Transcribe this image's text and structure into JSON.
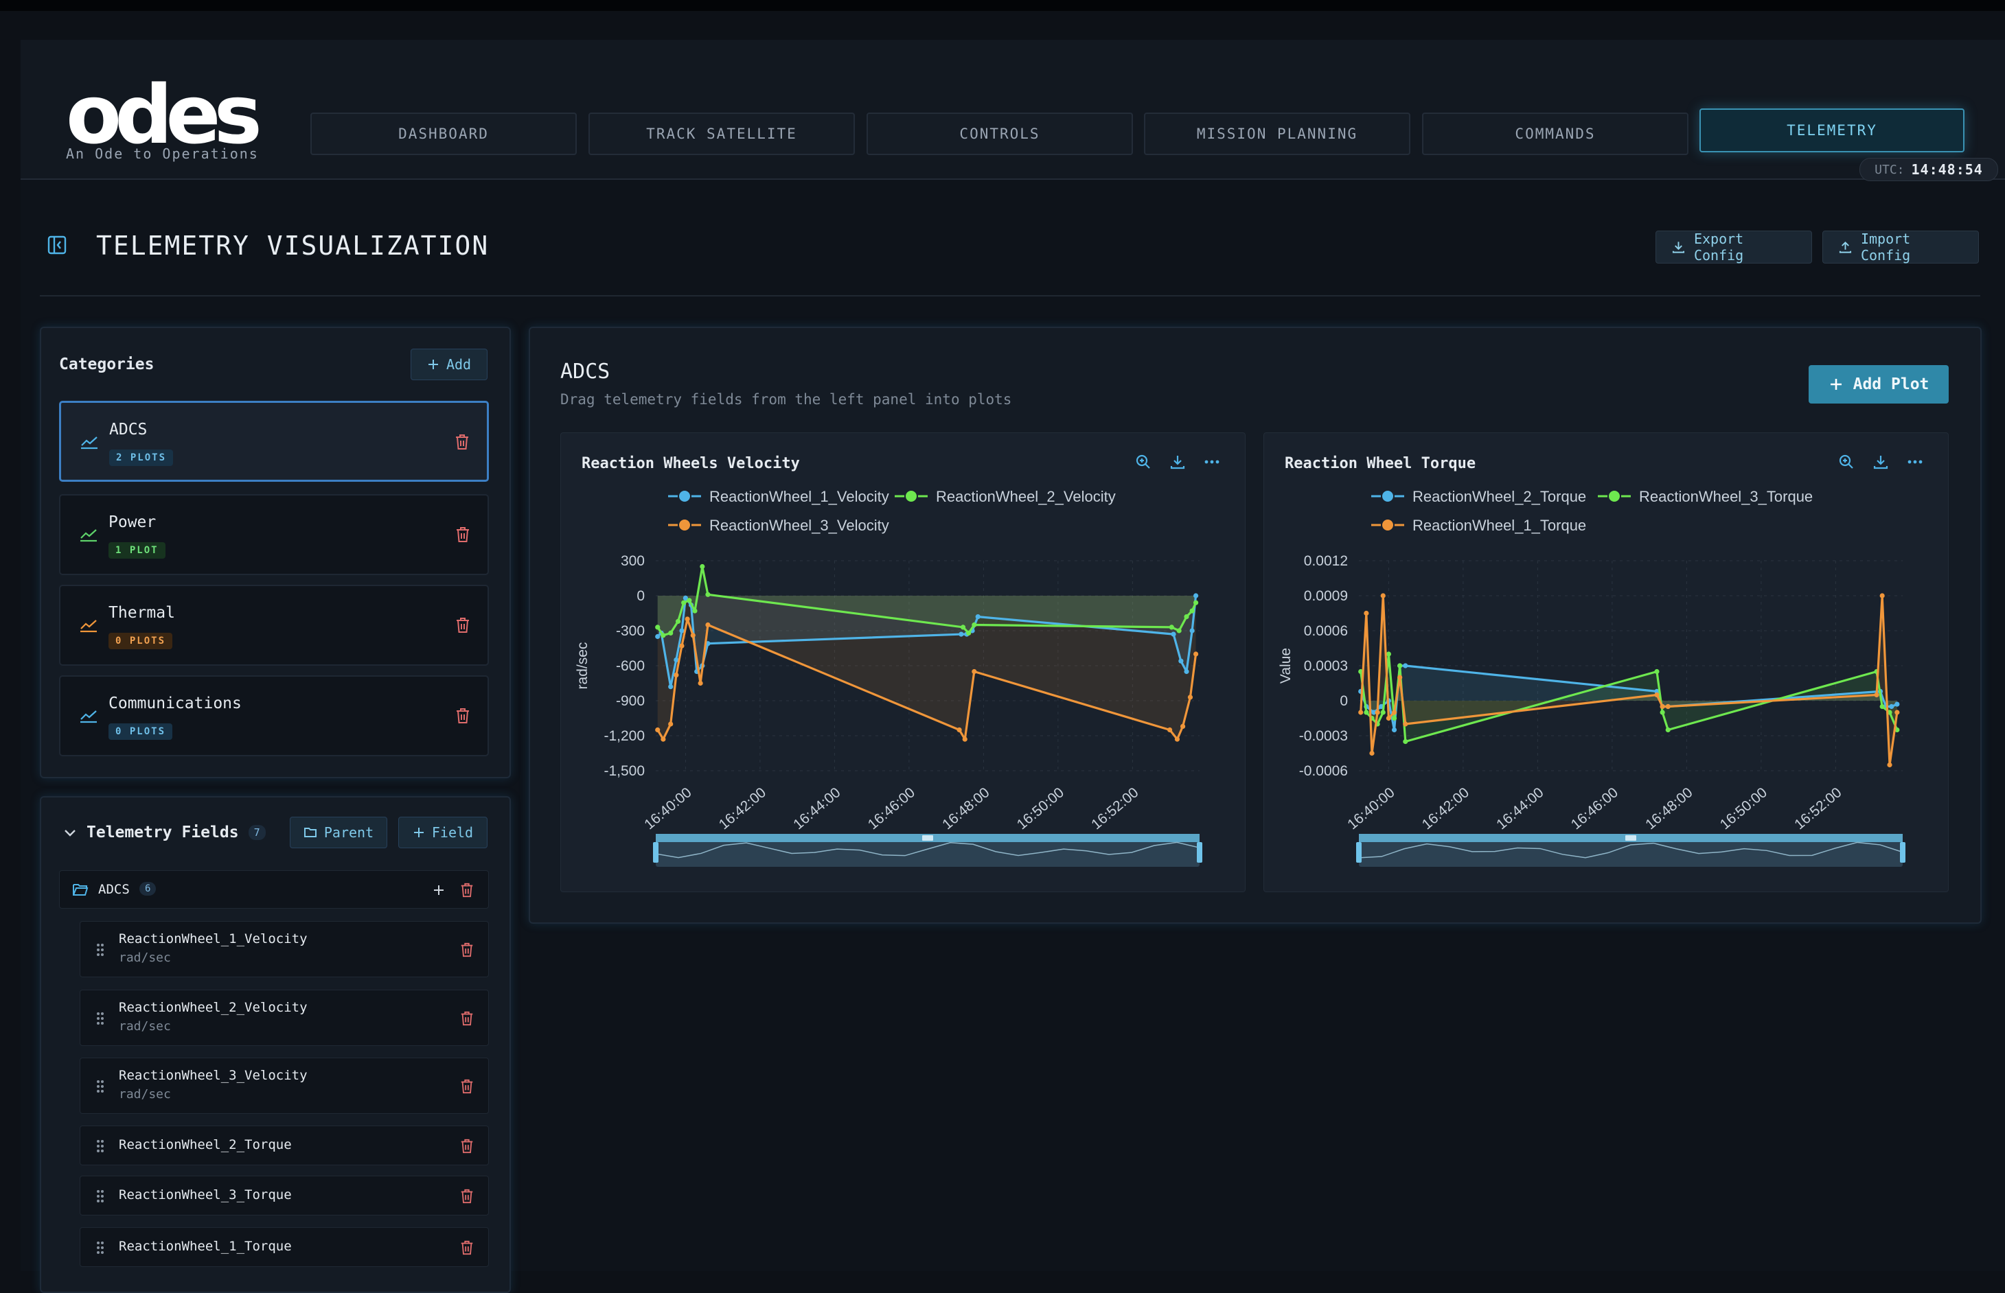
{
  "app": {
    "logo_text": "odes",
    "tagline": "An Ode to Operations"
  },
  "nav": [
    {
      "label": "DASHBOARD"
    },
    {
      "label": "TRACK SATELLITE"
    },
    {
      "label": "CONTROLS"
    },
    {
      "label": "MISSION PLANNING"
    },
    {
      "label": "COMMANDS"
    },
    {
      "label": "TELEMETRY",
      "active": true
    }
  ],
  "utc": {
    "label": "UTC:",
    "time": "14:48:54"
  },
  "page": {
    "title": "TELEMETRY VISUALIZATION",
    "export_label": "Export Config",
    "import_label": "Import Config"
  },
  "categories": {
    "title": "Categories",
    "add_label": "Add",
    "items": [
      {
        "name": "ADCS",
        "badge": "2 PLOTS",
        "color": "#4fb4e8",
        "selected": true
      },
      {
        "name": "Power",
        "badge": "1 PLOT",
        "color": "#5ed26a"
      },
      {
        "name": "Thermal",
        "badge": "0 PLOTS",
        "color": "#f0963a"
      },
      {
        "name": "Communications",
        "badge": "0 PLOTS",
        "color": "#4fb4e8"
      }
    ]
  },
  "telemetry_fields": {
    "title": "Telemetry Fields",
    "count": "7",
    "parent_label": "Parent",
    "field_label": "Field",
    "folder": {
      "name": "ADCS",
      "count": "6"
    },
    "fields": [
      {
        "name": "ReactionWheel_1_Velocity",
        "unit": "rad/sec"
      },
      {
        "name": "ReactionWheel_2_Velocity",
        "unit": "rad/sec"
      },
      {
        "name": "ReactionWheel_3_Velocity",
        "unit": "rad/sec"
      },
      {
        "name": "ReactionWheel_2_Torque",
        "unit": ""
      },
      {
        "name": "ReactionWheel_3_Torque",
        "unit": ""
      },
      {
        "name": "ReactionWheel_1_Torque",
        "unit": ""
      }
    ]
  },
  "main": {
    "title": "ADCS",
    "subtitle": "Drag telemetry fields from the left panel into plots",
    "add_plot_label": "Add Plot"
  },
  "chart_data": [
    {
      "type": "line",
      "title": "Reaction Wheels Velocity",
      "ylabel": "rad/sec",
      "xlabel": "",
      "ylim": [
        -1500,
        300
      ],
      "yticks": [
        "300",
        "0",
        "-300",
        "-600",
        "-900",
        "-1,200",
        "-1,500"
      ],
      "yticks_values": [
        300,
        0,
        -300,
        -600,
        -900,
        -1200,
        -1500
      ],
      "xticks": [
        "16:40:00",
        "16:42:00",
        "16:44:00",
        "16:46:00",
        "16:48:00",
        "16:50:00",
        "16:52:00"
      ],
      "xticks_minutes": [
        40,
        42,
        44,
        46,
        48,
        50,
        52
      ],
      "xlim_minutes": [
        39.2,
        53.8
      ],
      "area_fill": true,
      "grid": true,
      "legend": "top",
      "series": [
        {
          "name": "ReactionWheel_1_Velocity",
          "color": "#4fb4e8",
          "x": [
            39.25,
            39.35,
            39.6,
            39.75,
            39.9,
            40.0,
            40.15,
            40.3,
            40.45,
            40.6,
            47.4,
            47.55,
            47.7,
            47.85,
            53.1,
            53.3,
            53.45,
            53.6,
            53.7
          ],
          "y": [
            -350,
            -320,
            -780,
            -550,
            -300,
            -20,
            -80,
            -650,
            -600,
            -410,
            -330,
            -330,
            -300,
            -180,
            -330,
            -560,
            -650,
            -300,
            0
          ]
        },
        {
          "name": "ReactionWheel_2_Velocity",
          "color": "#6ee84f",
          "x": [
            39.25,
            39.4,
            39.6,
            39.8,
            39.95,
            40.1,
            40.25,
            40.45,
            40.6,
            47.45,
            47.6,
            47.75,
            53.05,
            53.25,
            53.45,
            53.6,
            53.7
          ],
          "y": [
            -270,
            -340,
            -320,
            -220,
            -60,
            -40,
            -130,
            250,
            10,
            -270,
            -320,
            -250,
            -270,
            -300,
            -180,
            -130,
            -60
          ]
        },
        {
          "name": "ReactionWheel_3_Velocity",
          "color": "#f0963a",
          "x": [
            39.25,
            39.4,
            39.6,
            39.75,
            39.9,
            40.05,
            40.2,
            40.4,
            40.6,
            47.35,
            47.5,
            47.75,
            53.0,
            53.2,
            53.35,
            53.55,
            53.7
          ],
          "y": [
            -1150,
            -1230,
            -1100,
            -680,
            -430,
            -200,
            -340,
            -750,
            -250,
            -1150,
            -1230,
            -650,
            -1150,
            -1230,
            -1120,
            -870,
            -500
          ]
        }
      ]
    },
    {
      "type": "line",
      "title": "Reaction Wheel Torque",
      "ylabel": "Value",
      "xlabel": "",
      "ylim": [
        -0.0006,
        0.0012
      ],
      "yticks": [
        "0.0012",
        "0.0009",
        "0.0006",
        "0.0003",
        "0",
        "-0.0003",
        "-0.0006"
      ],
      "yticks_values": [
        0.0012,
        0.0009,
        0.0006,
        0.0003,
        0,
        -0.0003,
        -0.0006
      ],
      "xticks": [
        "16:40:00",
        "16:42:00",
        "16:44:00",
        "16:46:00",
        "16:48:00",
        "16:50:00",
        "16:52:00"
      ],
      "xticks_minutes": [
        40,
        42,
        44,
        46,
        48,
        50,
        52
      ],
      "xlim_minutes": [
        39.2,
        53.8
      ],
      "area_fill": true,
      "grid": true,
      "legend": "top",
      "series": [
        {
          "name": "ReactionWheel_2_Torque",
          "color": "#4fb4e8",
          "x": [
            39.25,
            39.4,
            39.6,
            39.8,
            40.0,
            40.15,
            40.3,
            40.45,
            47.2,
            47.35,
            47.5,
            53.2,
            53.35,
            53.5,
            53.65
          ],
          "y": [
            8e-05,
            -5e-05,
            -0.0001,
            -5e-05,
            0,
            -0.00025,
            0.0003,
            0.0003,
            8e-05,
            -5e-05,
            -5e-05,
            8e-05,
            -5e-05,
            -5e-05,
            -3e-05
          ]
        },
        {
          "name": "ReactionWheel_3_Torque",
          "color": "#6ee84f",
          "x": [
            39.25,
            39.4,
            39.55,
            39.7,
            39.85,
            40.0,
            40.15,
            40.3,
            40.45,
            47.2,
            47.35,
            47.5,
            53.1,
            53.25,
            53.45,
            53.65
          ],
          "y": [
            0.00025,
            -0.0001,
            -0.00015,
            -0.0002,
            -0.0001,
            0.0004,
            -0.00015,
            0.0003,
            -0.00035,
            0.00025,
            -0.0001,
            -0.00025,
            0.00025,
            -5e-05,
            -0.0001,
            -0.00025
          ]
        },
        {
          "name": "ReactionWheel_1_Torque",
          "color": "#f0963a",
          "x": [
            39.25,
            39.4,
            39.55,
            39.7,
            39.85,
            40.0,
            40.15,
            40.3,
            40.45,
            47.2,
            47.35,
            47.5,
            53.1,
            53.25,
            53.45,
            53.65
          ],
          "y": [
            -0.0001,
            0.00075,
            -0.00045,
            -0.0001,
            0.0009,
            -0.00015,
            -0.0001,
            0.0002,
            -0.0002,
            5e-05,
            -5e-05,
            -5e-05,
            5e-05,
            0.0009,
            -0.00055,
            -0.0001
          ]
        }
      ]
    }
  ]
}
